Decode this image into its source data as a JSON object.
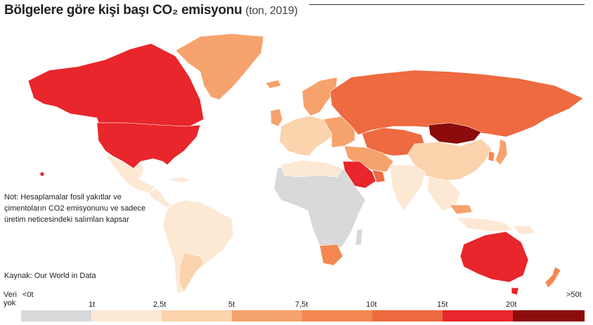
{
  "title": {
    "main": "Bölgelere göre kişi başı CO₂ emisyonu",
    "sub": "(ton, 2019)"
  },
  "note": [
    "Not: Hesaplamalar fosil yakıtlar ve",
    "çimentoların CO2 emisyonunu ve sadece",
    "üretim neticesindeki salımları kapsar"
  ],
  "source": "Kaynak: Our World in Data",
  "legend": {
    "no_data": [
      "Veri",
      "yok"
    ],
    "lt0": "<0t",
    "ticks": [
      "1t",
      "2,5t",
      "5t",
      "7,5t",
      "10t",
      "15t",
      "20t"
    ],
    "gt": ">50t",
    "colors": [
      "#d9d9d9",
      "#fde8d4",
      "#fbd3ad",
      "#f6a26c",
      "#f3874f",
      "#ee6a40",
      "#e8262b",
      "#8c0b0b"
    ]
  },
  "map_colors": {
    "no_data": "#d9d9d9",
    "c1": "#fde8d4",
    "c2": "#fbd3ad",
    "c3": "#f6a26c",
    "c4": "#f3874f",
    "c5": "#ee6a40",
    "c6": "#e8262b",
    "c7": "#8c0b0b"
  }
}
